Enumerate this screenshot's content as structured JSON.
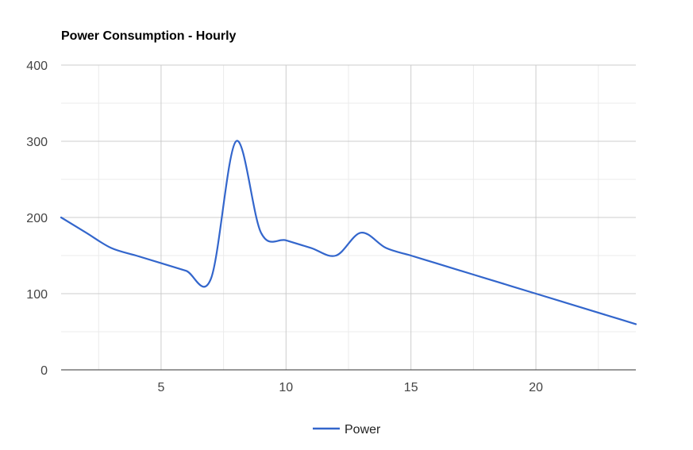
{
  "chart_data": {
    "type": "line",
    "title": "Power Consumption - Hourly",
    "xlabel": "",
    "ylabel": "",
    "xlim": [
      1,
      24
    ],
    "ylim": [
      0,
      400
    ],
    "x_ticks": [
      5,
      10,
      15,
      20
    ],
    "y_ticks": [
      0,
      100,
      200,
      300,
      400
    ],
    "grid": true,
    "legend_position": "bottom",
    "x": [
      1,
      2,
      3,
      4,
      5,
      6,
      7,
      8,
      9,
      10,
      11,
      12,
      13,
      14,
      15,
      16,
      17,
      18,
      19,
      20,
      21,
      22,
      23,
      24
    ],
    "series": [
      {
        "name": "Power",
        "color": "#3366cc",
        "values": [
          200,
          180,
          160,
          150,
          140,
          130,
          120,
          300,
          180,
          170,
          160,
          150,
          180,
          160,
          150,
          140,
          130,
          120,
          110,
          100,
          90,
          80,
          70,
          60
        ]
      }
    ]
  }
}
